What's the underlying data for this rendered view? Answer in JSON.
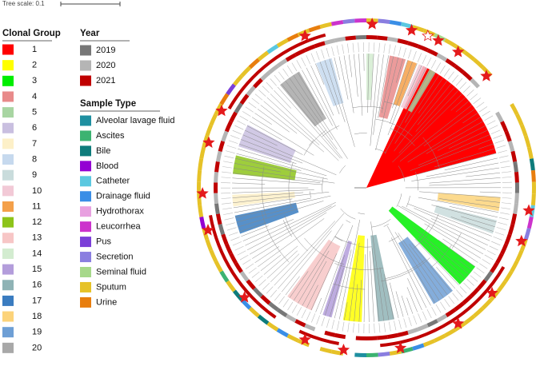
{
  "tree_scale": "Tree scale: 0.1",
  "clonal_group": {
    "title": "Clonal Group",
    "items": [
      {
        "label": "1",
        "color": "#ff0000"
      },
      {
        "label": "2",
        "color": "#ffff00"
      },
      {
        "label": "3",
        "color": "#00ee00"
      },
      {
        "label": "4",
        "color": "#e88a8a"
      },
      {
        "label": "5",
        "color": "#a8d5a2"
      },
      {
        "label": "6",
        "color": "#c9bfe0"
      },
      {
        "label": "7",
        "color": "#fdf0c8"
      },
      {
        "label": "8",
        "color": "#c6d9ee"
      },
      {
        "label": "9",
        "color": "#c9dcdc"
      },
      {
        "label": "10",
        "color": "#f2c9d6"
      },
      {
        "label": "11",
        "color": "#f4a04a"
      },
      {
        "label": "12",
        "color": "#8dc41a"
      },
      {
        "label": "13",
        "color": "#f7c6c6"
      },
      {
        "label": "14",
        "color": "#d3ecd0"
      },
      {
        "label": "15",
        "color": "#b39ddb"
      },
      {
        "label": "16",
        "color": "#8fb3b5"
      },
      {
        "label": "17",
        "color": "#3a7cc0"
      },
      {
        "label": "18",
        "color": "#fcd37a"
      },
      {
        "label": "19",
        "color": "#6e9fd5"
      },
      {
        "label": "20",
        "color": "#a8a8a8"
      }
    ]
  },
  "year": {
    "title": "Year",
    "items": [
      {
        "label": "2019",
        "color": "#777777"
      },
      {
        "label": "2020",
        "color": "#b5b5b5"
      },
      {
        "label": "2021",
        "color": "#c00000"
      }
    ]
  },
  "sample_type": {
    "title": "Sample Type",
    "items": [
      {
        "label": "Alveolar lavage fluid",
        "color": "#1e8fa0"
      },
      {
        "label": "Ascites",
        "color": "#3cb371"
      },
      {
        "label": "Bile",
        "color": "#0e7c7b"
      },
      {
        "label": "Blood",
        "color": "#9400d3"
      },
      {
        "label": "Catheter",
        "color": "#5bc8e0"
      },
      {
        "label": "Drainage fluid",
        "color": "#3a8ee6"
      },
      {
        "label": "Hydrothorax",
        "color": "#e8a0e0"
      },
      {
        "label": "Leucorrhea",
        "color": "#cc33cc"
      },
      {
        "label": "Pus",
        "color": "#7b3fd8"
      },
      {
        "label": "Secretion",
        "color": "#8a7ee0"
      },
      {
        "label": "Seminal fluid",
        "color": "#a6d88a"
      },
      {
        "label": "Sputum",
        "color": "#e6c228"
      },
      {
        "label": "Urine",
        "color": "#e87e0e"
      }
    ]
  }
}
